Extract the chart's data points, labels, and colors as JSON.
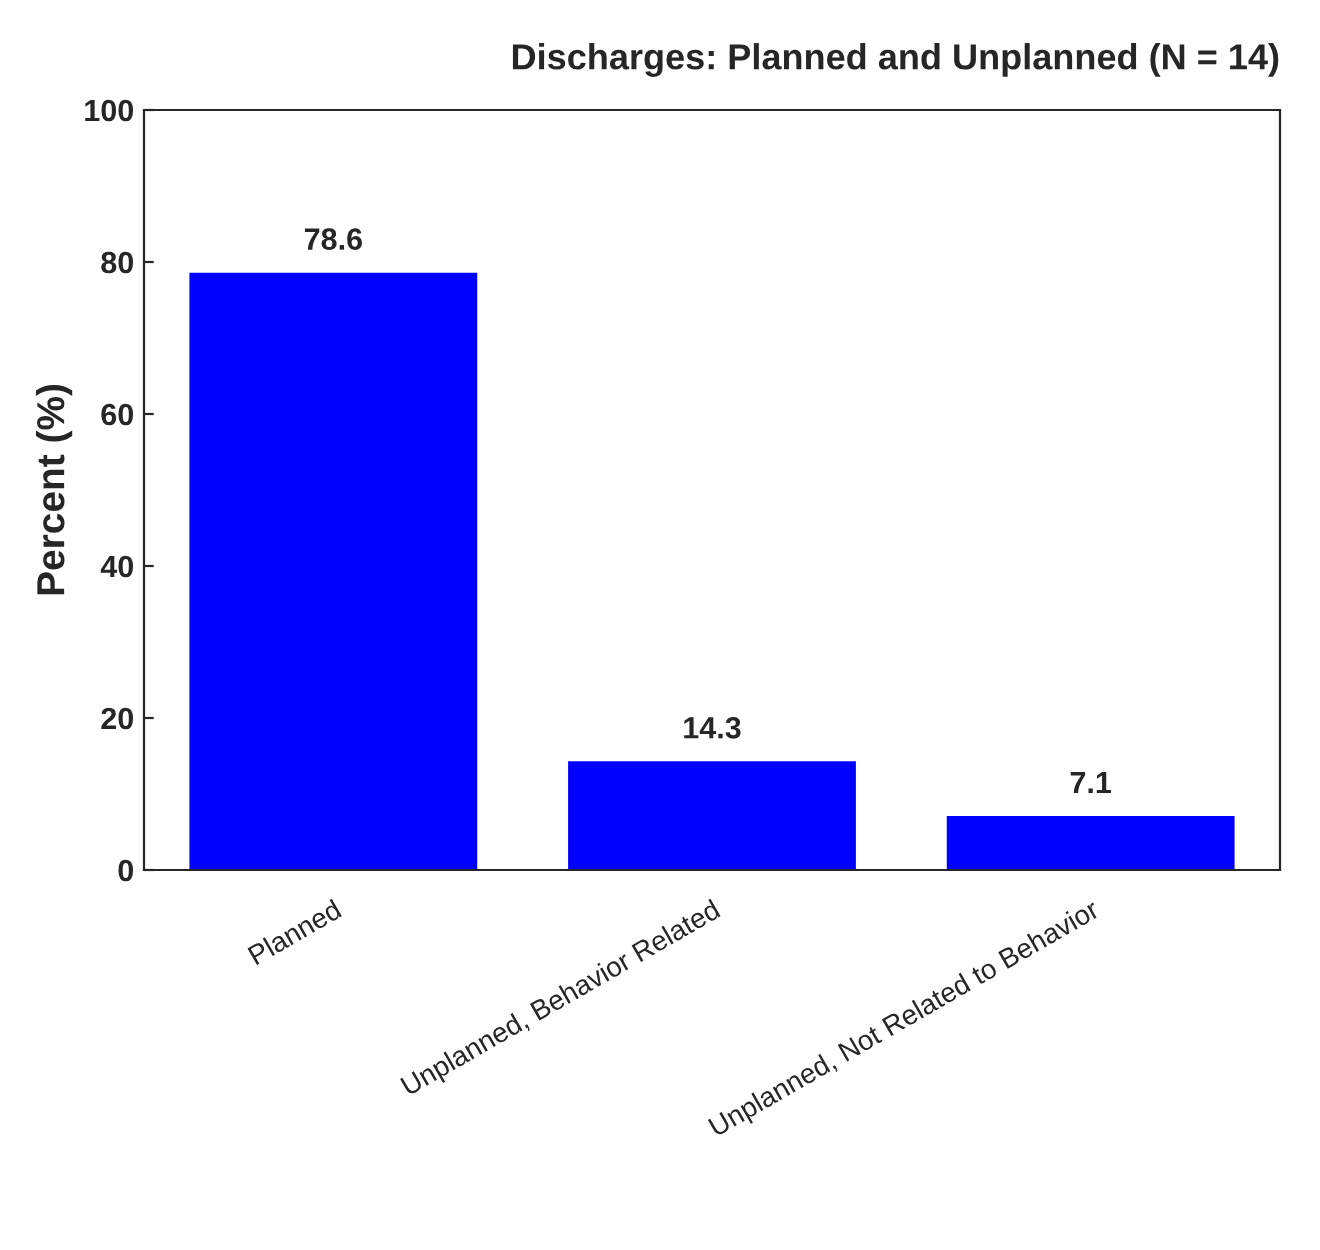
{
  "chart_data": {
    "type": "bar",
    "title": "Discharges: Planned and Unplanned (N = 14)",
    "ylabel": "Percent (%)",
    "categories": [
      "Planned",
      "Unplanned, Behavior Related",
      "Unplanned, Not Related to Behavior"
    ],
    "values": [
      78.6,
      14.3,
      7.1
    ],
    "color": "#0000ff",
    "data_labels": true,
    "ylim": [
      0,
      100
    ],
    "yticks": [
      0,
      20,
      40,
      60,
      80,
      100
    ],
    "grid": false,
    "legend": false
  }
}
